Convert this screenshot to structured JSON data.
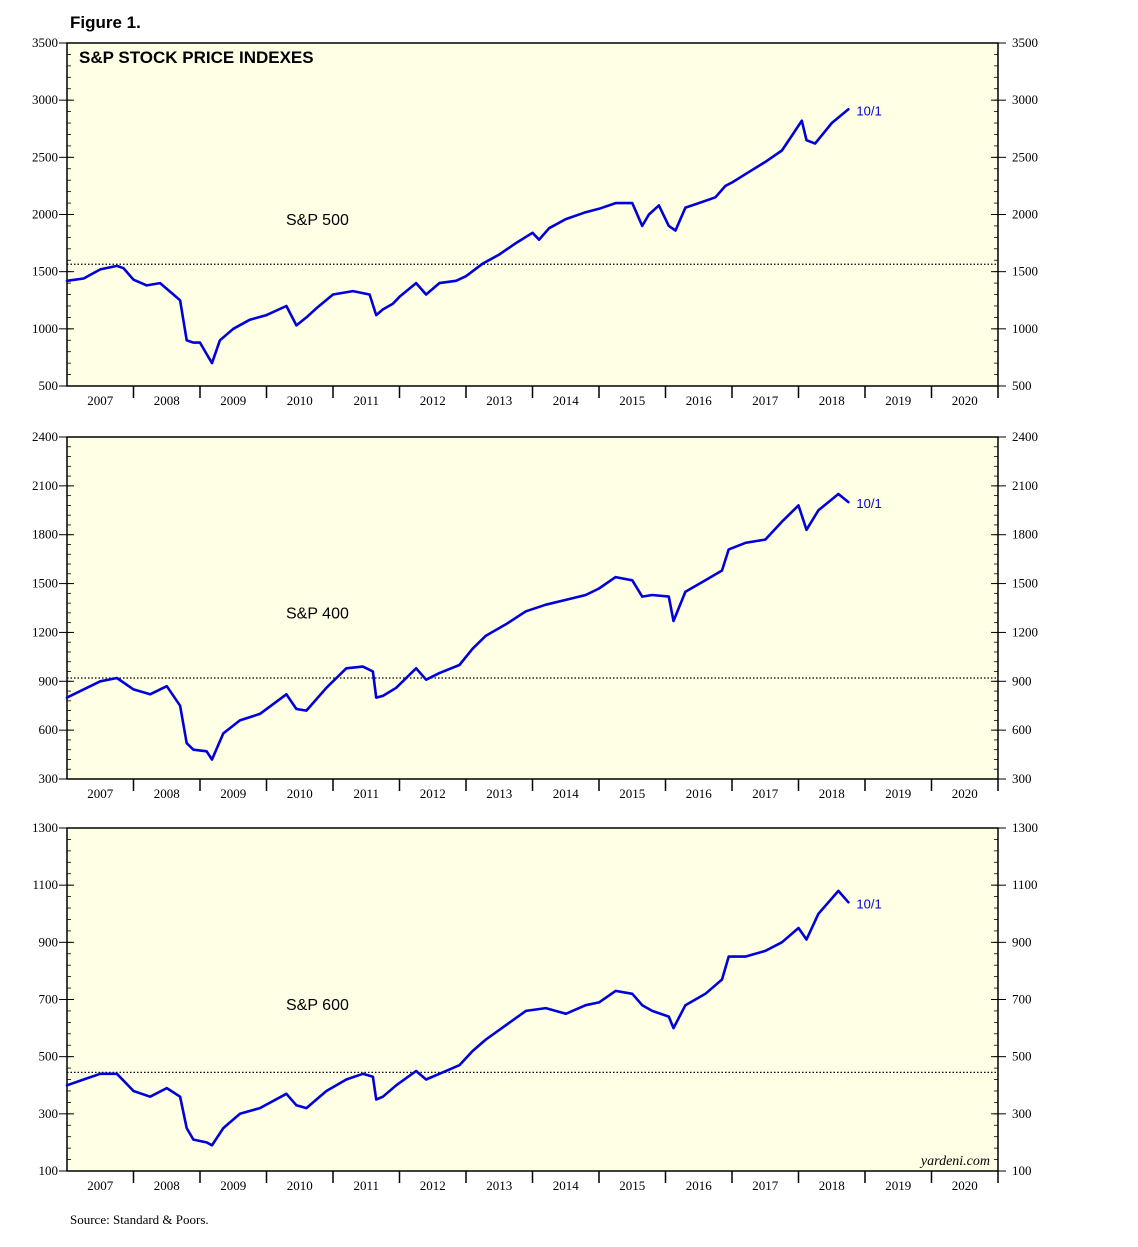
{
  "figure_label": "Figure 1.",
  "source": "Source: Standard & Poors.",
  "watermark": "yardeni.com",
  "colors": {
    "line": "#0000dd",
    "plot_bg": "#ffffe6",
    "reference": "#000000"
  },
  "chart_data": [
    {
      "type": "line",
      "title": "S&P STOCK PRICE INDEXES",
      "series_label": "S&P 500",
      "end_label": "10/1",
      "xlabel": "",
      "ylabel": "",
      "x_ticks": [
        "2007",
        "2008",
        "2009",
        "2010",
        "2011",
        "2012",
        "2013",
        "2014",
        "2015",
        "2016",
        "2017",
        "2018",
        "2019",
        "2020"
      ],
      "xlim": [
        2007.0,
        2021.0
      ],
      "ylim": [
        500,
        3500
      ],
      "yticks": [
        500,
        1000,
        1500,
        2000,
        2500,
        3000,
        3500
      ],
      "reference_line": 1565,
      "series": [
        {
          "x": [
            2007.0,
            2007.25,
            2007.5,
            2007.75,
            2007.85,
            2008.0,
            2008.2,
            2008.4,
            2008.6,
            2008.7,
            2008.8,
            2008.9,
            2009.0,
            2009.1,
            2009.18,
            2009.3,
            2009.5,
            2009.75,
            2010.0,
            2010.3,
            2010.45,
            2010.6,
            2010.75,
            2011.0,
            2011.3,
            2011.55,
            2011.65,
            2011.75,
            2011.9,
            2012.0,
            2012.25,
            2012.4,
            2012.6,
            2012.85,
            2013.0,
            2013.25,
            2013.5,
            2013.75,
            2014.0,
            2014.1,
            2014.25,
            2014.5,
            2014.8,
            2015.0,
            2015.25,
            2015.5,
            2015.65,
            2015.75,
            2015.9,
            2016.05,
            2016.15,
            2016.3,
            2016.5,
            2016.75,
            2016.9,
            2017.0,
            2017.25,
            2017.5,
            2017.75,
            2017.9,
            2018.05,
            2018.12,
            2018.25,
            2018.5,
            2018.75
          ],
          "values": [
            1420,
            1440,
            1520,
            1550,
            1530,
            1430,
            1380,
            1400,
            1300,
            1250,
            900,
            880,
            880,
            780,
            700,
            900,
            1000,
            1080,
            1120,
            1200,
            1030,
            1100,
            1180,
            1300,
            1330,
            1300,
            1120,
            1170,
            1220,
            1280,
            1400,
            1300,
            1400,
            1420,
            1460,
            1570,
            1650,
            1750,
            1840,
            1780,
            1880,
            1960,
            2020,
            2050,
            2100,
            2100,
            1900,
            2000,
            2080,
            1900,
            1860,
            2060,
            2100,
            2150,
            2250,
            2280,
            2370,
            2460,
            2560,
            2690,
            2820,
            2650,
            2620,
            2800,
            2920
          ]
        }
      ]
    },
    {
      "type": "line",
      "series_label": "S&P 400",
      "end_label": "10/1",
      "xlabel": "",
      "ylabel": "",
      "x_ticks": [
        "2007",
        "2008",
        "2009",
        "2010",
        "2011",
        "2012",
        "2013",
        "2014",
        "2015",
        "2016",
        "2017",
        "2018",
        "2019",
        "2020"
      ],
      "xlim": [
        2007.0,
        2021.0
      ],
      "ylim": [
        300,
        2400
      ],
      "yticks": [
        300,
        600,
        900,
        1200,
        1500,
        1800,
        2100,
        2400
      ],
      "reference_line": 920,
      "series": [
        {
          "x": [
            2007.0,
            2007.25,
            2007.5,
            2007.75,
            2008.0,
            2008.25,
            2008.5,
            2008.7,
            2008.8,
            2008.9,
            2009.1,
            2009.18,
            2009.35,
            2009.6,
            2009.9,
            2010.3,
            2010.45,
            2010.6,
            2010.9,
            2011.2,
            2011.45,
            2011.6,
            2011.65,
            2011.75,
            2011.95,
            2012.25,
            2012.4,
            2012.6,
            2012.9,
            2013.1,
            2013.3,
            2013.6,
            2013.9,
            2014.2,
            2014.5,
            2014.8,
            2015.0,
            2015.25,
            2015.5,
            2015.65,
            2015.8,
            2016.05,
            2016.12,
            2016.3,
            2016.6,
            2016.85,
            2016.95,
            2017.2,
            2017.5,
            2017.75,
            2018.0,
            2018.12,
            2018.3,
            2018.6,
            2018.75
          ],
          "values": [
            800,
            850,
            900,
            920,
            850,
            820,
            870,
            750,
            520,
            480,
            470,
            420,
            580,
            660,
            700,
            820,
            730,
            720,
            860,
            980,
            990,
            960,
            800,
            810,
            860,
            980,
            910,
            950,
            1000,
            1100,
            1180,
            1250,
            1330,
            1370,
            1400,
            1430,
            1470,
            1540,
            1520,
            1420,
            1430,
            1420,
            1270,
            1450,
            1520,
            1580,
            1710,
            1750,
            1770,
            1880,
            1980,
            1830,
            1950,
            2050,
            2000
          ]
        }
      ]
    },
    {
      "type": "line",
      "series_label": "S&P 600",
      "end_label": "10/1",
      "xlabel": "",
      "ylabel": "",
      "x_ticks": [
        "2007",
        "2008",
        "2009",
        "2010",
        "2011",
        "2012",
        "2013",
        "2014",
        "2015",
        "2016",
        "2017",
        "2018",
        "2019",
        "2020"
      ],
      "xlim": [
        2007.0,
        2021.0
      ],
      "ylim": [
        100,
        1300
      ],
      "yticks": [
        100,
        300,
        500,
        700,
        900,
        1100,
        1300
      ],
      "reference_line": 445,
      "series": [
        {
          "x": [
            2007.0,
            2007.25,
            2007.5,
            2007.75,
            2008.0,
            2008.25,
            2008.5,
            2008.7,
            2008.8,
            2008.9,
            2009.1,
            2009.18,
            2009.35,
            2009.6,
            2009.9,
            2010.3,
            2010.45,
            2010.6,
            2010.9,
            2011.2,
            2011.45,
            2011.6,
            2011.65,
            2011.75,
            2011.95,
            2012.25,
            2012.4,
            2012.6,
            2012.9,
            2013.1,
            2013.3,
            2013.6,
            2013.9,
            2014.2,
            2014.5,
            2014.8,
            2015.0,
            2015.25,
            2015.5,
            2015.65,
            2015.8,
            2016.05,
            2016.12,
            2016.3,
            2016.6,
            2016.85,
            2016.95,
            2017.2,
            2017.5,
            2017.75,
            2018.0,
            2018.12,
            2018.3,
            2018.6,
            2018.75
          ],
          "values": [
            400,
            420,
            440,
            440,
            380,
            360,
            390,
            360,
            250,
            210,
            200,
            190,
            250,
            300,
            320,
            370,
            330,
            320,
            380,
            420,
            440,
            430,
            350,
            360,
            400,
            450,
            420,
            440,
            470,
            520,
            560,
            610,
            660,
            670,
            650,
            680,
            690,
            730,
            720,
            680,
            660,
            640,
            600,
            680,
            720,
            770,
            850,
            850,
            870,
            900,
            950,
            910,
            1000,
            1080,
            1040
          ]
        }
      ]
    }
  ]
}
